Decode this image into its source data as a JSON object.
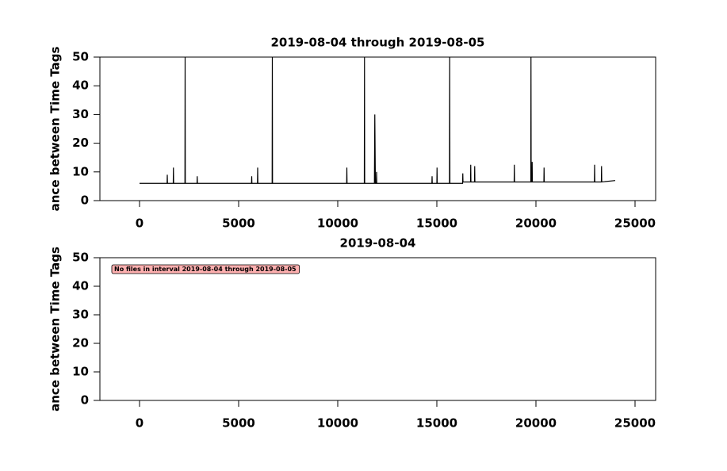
{
  "chart_data": [
    {
      "type": "line",
      "title": "2019-08-04 through 2019-08-05",
      "ylabel": "ance between Time Tags",
      "xlim": [
        -2000,
        26040
      ],
      "xticks": [
        0,
        5000,
        10000,
        15000,
        20000,
        25000
      ],
      "ylim": [
        0,
        50
      ],
      "yticks": [
        0,
        10,
        20,
        30,
        40,
        50
      ],
      "series": [
        {
          "color": "#000000",
          "x": [
            0,
            1390,
            1400,
            1410,
            1700,
            1710,
            1720,
            2290,
            2300,
            2310,
            2900,
            2910,
            2920,
            5650,
            5660,
            5670,
            5950,
            5960,
            5970,
            6690,
            6700,
            6710,
            10450,
            10460,
            10470,
            11340,
            11350,
            11360,
            11850,
            11870,
            11900,
            11950,
            11960,
            11970,
            14750,
            14760,
            14770,
            15000,
            15010,
            15020,
            15640,
            15650,
            15660,
            16300,
            16310,
            16320,
            16700,
            16710,
            16720,
            16900,
            16910,
            16920,
            18900,
            18910,
            18920,
            19740,
            19750,
            19760,
            19800,
            19810,
            19820,
            20400,
            20410,
            20420,
            22950,
            22960,
            22970,
            23300,
            23310,
            23320,
            24000
          ],
          "values": [
            6,
            6,
            9,
            6,
            6,
            11.5,
            6,
            6,
            50,
            6,
            6,
            8.5,
            6,
            6,
            8.5,
            6,
            6,
            11.5,
            6,
            6,
            50,
            6,
            6,
            11.5,
            6,
            6,
            50,
            6,
            6,
            30,
            6,
            6,
            10,
            6,
            6,
            8.5,
            6,
            6,
            11.5,
            6,
            6,
            50,
            6,
            6,
            9.5,
            6.5,
            6.5,
            12.5,
            6.5,
            6.5,
            12,
            6.5,
            6.5,
            12.5,
            6.5,
            6.5,
            50,
            6.5,
            6.5,
            13.5,
            6.5,
            6.5,
            11.5,
            6.5,
            6.5,
            12.5,
            6.5,
            6.5,
            12,
            6.5,
            7
          ]
        }
      ]
    },
    {
      "type": "line",
      "title": "2019-08-04",
      "ylabel": "ance between Time Tags",
      "annotation": "No files in interval 2019-08-04 through 2019-08-05",
      "xlim": [
        -2000,
        26040
      ],
      "xticks": [
        0,
        5000,
        10000,
        15000,
        20000,
        25000
      ],
      "ylim": [
        0,
        50
      ],
      "yticks": [
        0,
        10,
        20,
        30,
        40,
        50
      ],
      "series": []
    }
  ]
}
